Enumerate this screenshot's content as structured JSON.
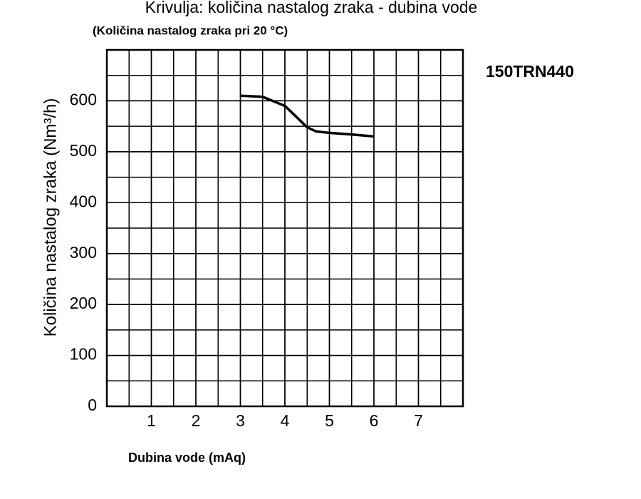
{
  "chart_data": {
    "type": "line",
    "title": "Krivulja: količina nastalog zraka - dubina vode",
    "subtitle": "(Količina nastalog zraka pri 20 °C)",
    "annotation": "150TRN440",
    "x_label": "Dubina vode (mAq)",
    "y_label": "Količina nastalog zraka (Nm³/h)",
    "x": [
      3,
      3.5,
      4,
      4.3,
      4.5,
      4.7,
      5,
      5.5,
      6
    ],
    "series": [
      {
        "name": "150TRN440",
        "color": "#000000",
        "values": [
          610,
          608,
          590,
          565,
          548,
          540,
          537,
          534,
          530
        ]
      }
    ],
    "xlim": [
      0,
      8
    ],
    "ylim": [
      0,
      700
    ],
    "xticks": [
      1,
      2,
      3,
      4,
      5,
      6,
      7
    ],
    "yticks": [
      0,
      100,
      200,
      300,
      400,
      500,
      600
    ],
    "grid": true
  }
}
